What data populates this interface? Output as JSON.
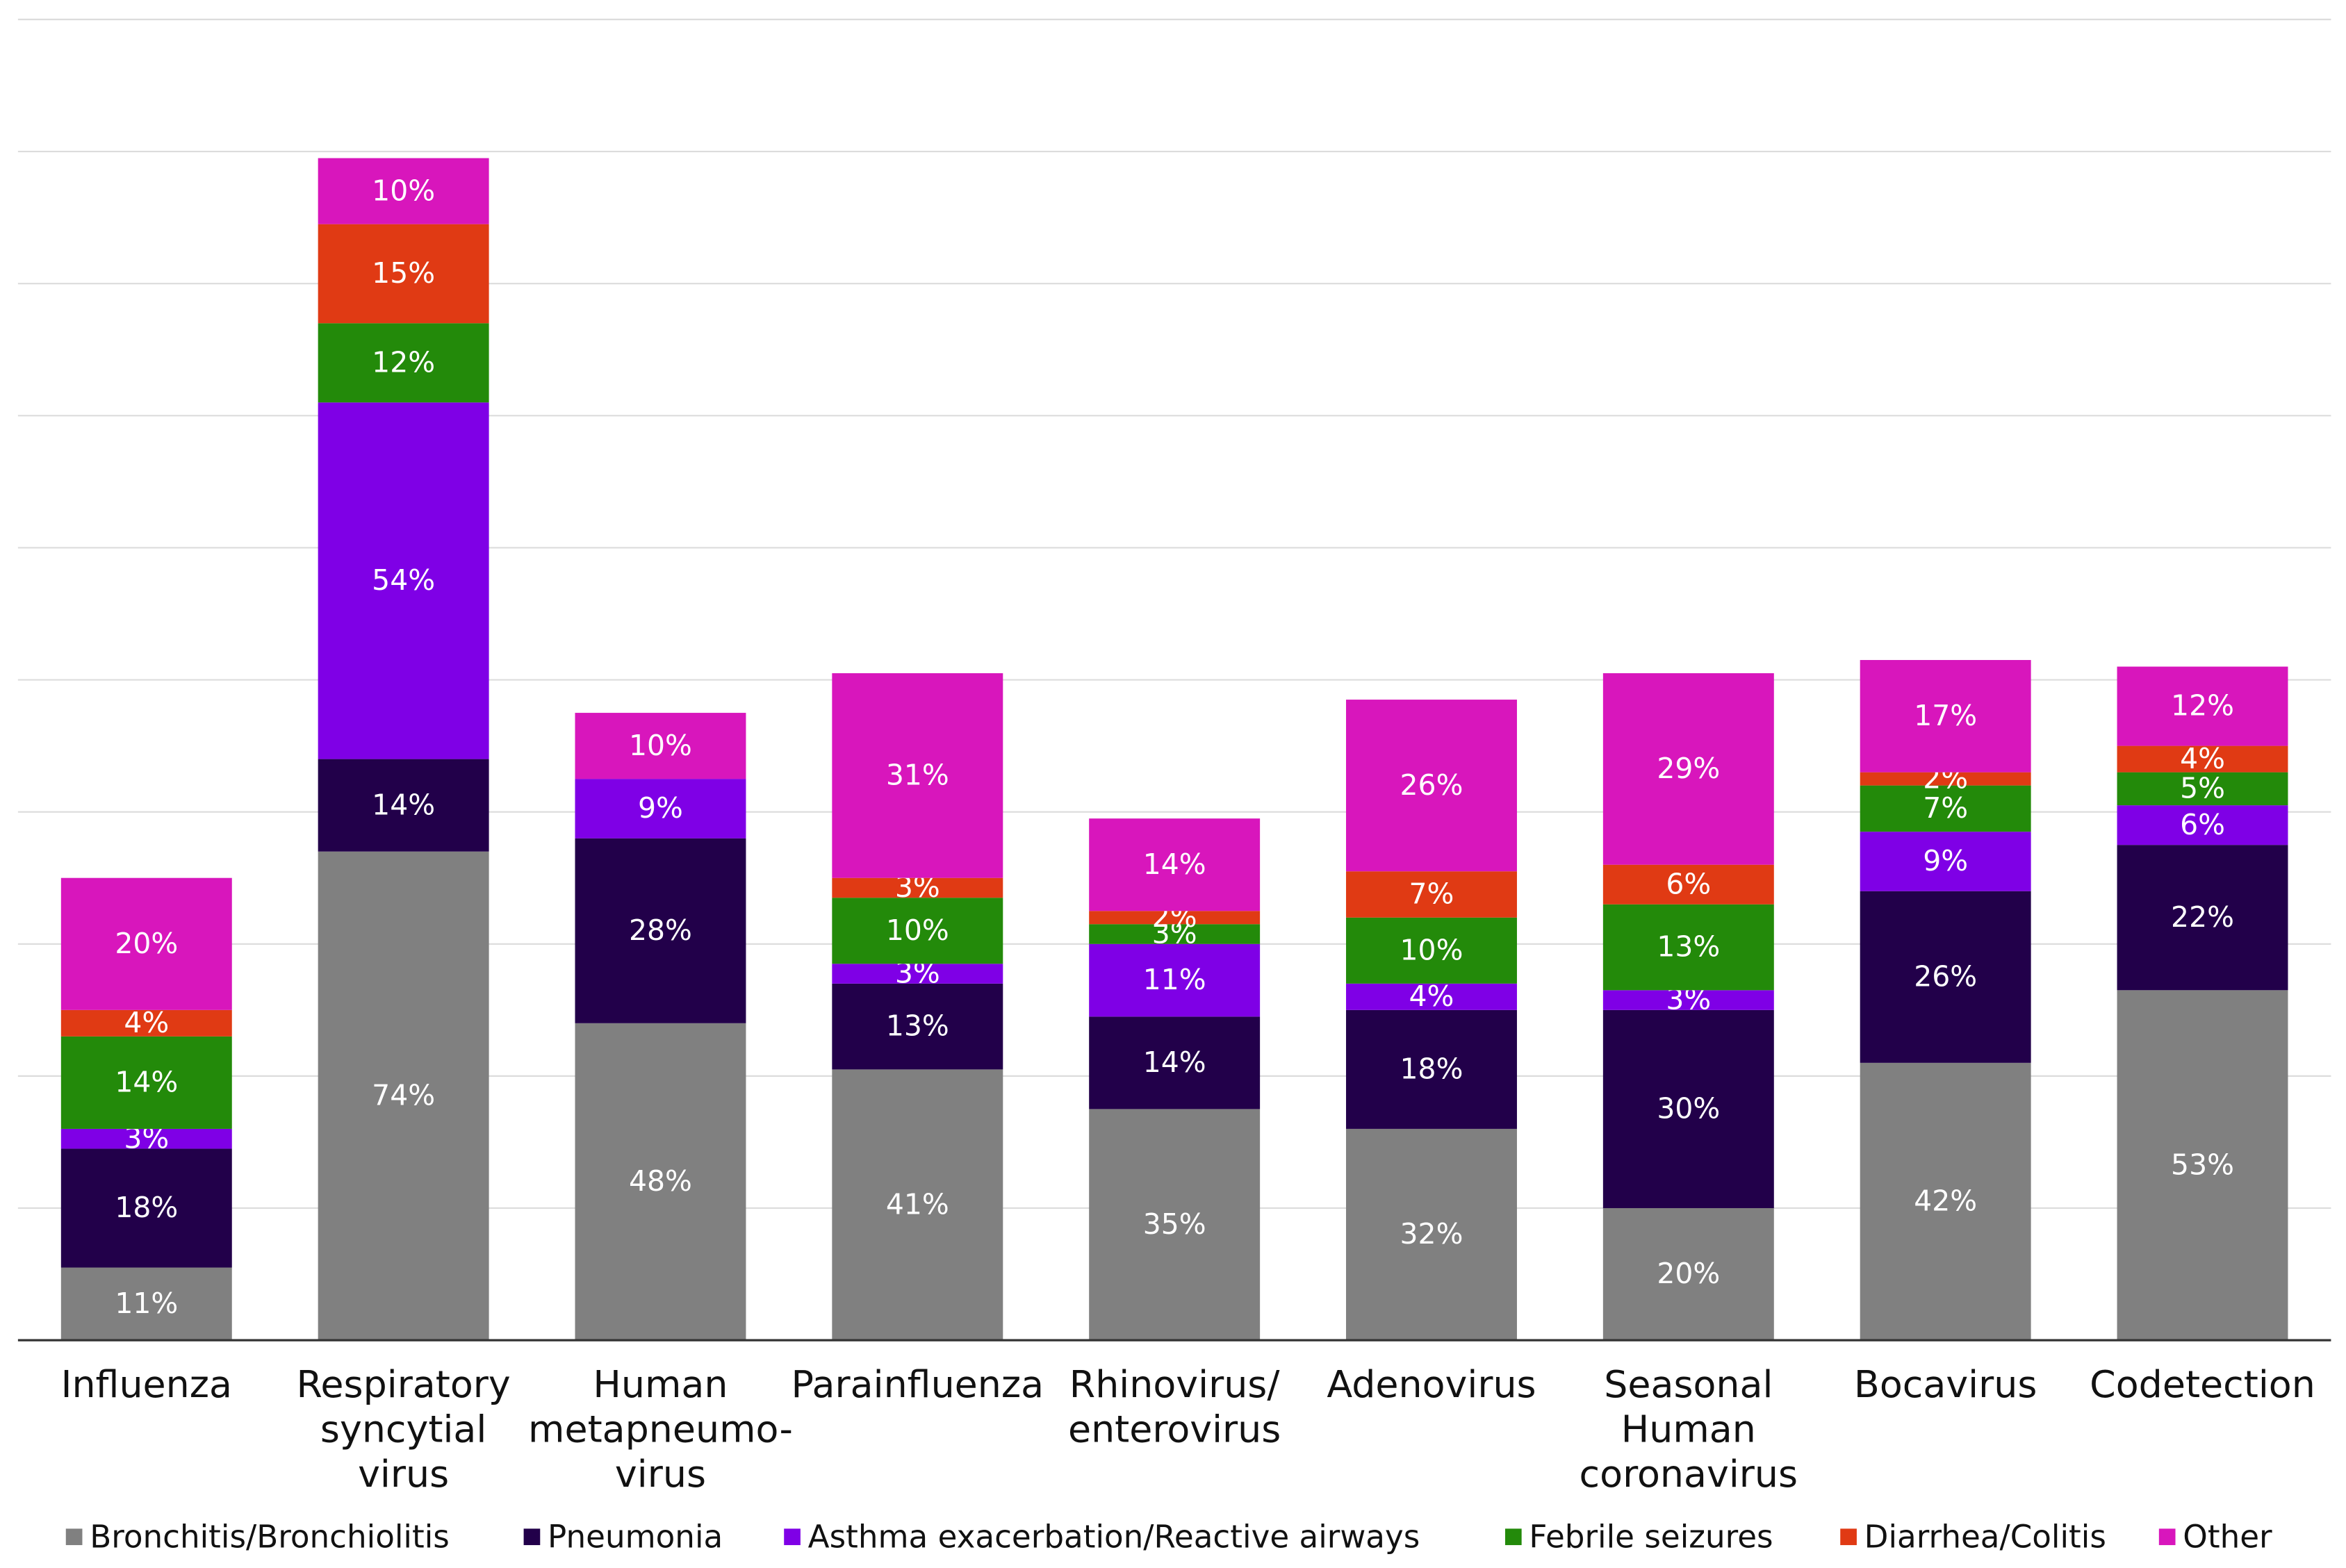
{
  "chart_data": {
    "type": "stacked_bar",
    "categories": [
      [
        "Influenza"
      ],
      [
        "Respiratory",
        "syncytial",
        "virus"
      ],
      [
        "Human",
        "metapneumo-",
        "virus"
      ],
      [
        "Parainfluenza"
      ],
      [
        "Rhinovirus/",
        "enterovirus"
      ],
      [
        "Adenovirus"
      ],
      [
        "Seasonal",
        "Human",
        "coronavirus"
      ],
      [
        "Bocavirus"
      ],
      [
        "Codetection"
      ]
    ],
    "series": [
      {
        "name": "Bronchitis/Bronchiolitis",
        "color": "#808080",
        "values": [
          11,
          74,
          48,
          41,
          35,
          32,
          20,
          42,
          53
        ],
        "value_labels": [
          "11%",
          "74%",
          "48%",
          "41%",
          "35%",
          "32%",
          "20%",
          "42%",
          "53%"
        ]
      },
      {
        "name": "Pneumonia",
        "color": "#22004a",
        "values": [
          18,
          14,
          28,
          13,
          14,
          18,
          30,
          26,
          22
        ],
        "value_labels": [
          "18%",
          "14%",
          "28%",
          "13%",
          "14%",
          "18%",
          "30%",
          "26%",
          "22%"
        ]
      },
      {
        "name": "Asthma exacerbation/Reactive airways",
        "color": "#7f00e6",
        "values": [
          3,
          54,
          9,
          3,
          11,
          4,
          3,
          9,
          6
        ],
        "value_labels": [
          "3%",
          "54%",
          "9%",
          "3%",
          "11%",
          "4%",
          "3%",
          "9%",
          "6%"
        ]
      },
      {
        "name": "Febrile seizures",
        "color": "#238a0a",
        "values": [
          14,
          12,
          null,
          10,
          3,
          10,
          13,
          7,
          5
        ],
        "value_labels": [
          "14%",
          "12%",
          null,
          "10%",
          "3%",
          "10%",
          "13%",
          "7%",
          "5%"
        ]
      },
      {
        "name": "Diarrhea/Colitis",
        "color": "#e03a14",
        "values": [
          4,
          15,
          null,
          3,
          2,
          7,
          6,
          2,
          4
        ],
        "value_labels": [
          "4%",
          "15%",
          null,
          "3%",
          "2%",
          "7%",
          "6%",
          "2%",
          "4%"
        ]
      },
      {
        "name": "Other",
        "color": "#d816bc",
        "values": [
          20,
          10,
          10,
          31,
          14,
          26,
          29,
          17,
          12
        ],
        "value_labels": [
          "20%",
          "10%",
          "10%",
          "31%",
          "14%",
          "26%",
          "29%",
          "17%",
          "12%"
        ]
      }
    ],
    "ylim": [
      0,
      200
    ],
    "yticks": [
      0,
      20,
      40,
      60,
      80,
      100,
      120,
      140,
      160,
      180,
      200
    ],
    "grid": true,
    "legend": "bottom"
  }
}
